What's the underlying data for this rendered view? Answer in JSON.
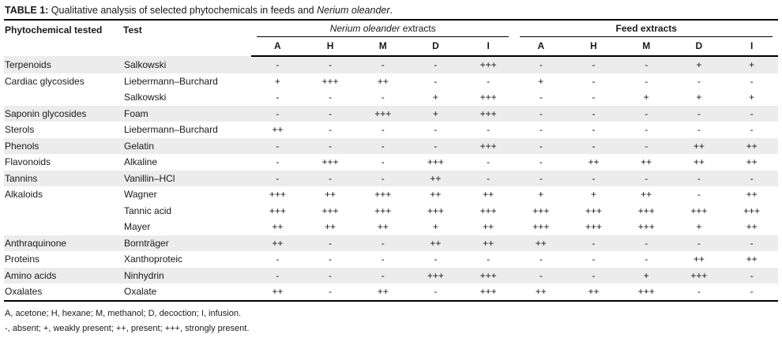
{
  "title": {
    "label": "TABLE 1:",
    "text": " Qualitative analysis of selected phytochemicals in feeds and ",
    "species": "Nerium oleander",
    "suffix": "."
  },
  "colors": {
    "row_shade": "#ececec",
    "rule": "#000000",
    "text": "#1a1a1a",
    "background": "#ffffff"
  },
  "table": {
    "col1_header": "Phytochemical tested",
    "col2_header": "Test",
    "groups": [
      {
        "name_italic": "Nerium oleander",
        "name_rest": " extracts",
        "subcols": [
          "A",
          "H",
          "M",
          "D",
          "I"
        ]
      },
      {
        "name": "Feed extracts",
        "subcols": [
          "A",
          "H",
          "M",
          "D",
          "I"
        ]
      }
    ],
    "rows": [
      {
        "phytochemical": "Terpenoids",
        "test": "Salkowski",
        "nerium": [
          "-",
          "-",
          "-",
          "-",
          "+++"
        ],
        "feed": [
          "-",
          "-",
          "-",
          "+",
          "+"
        ],
        "shaded": true
      },
      {
        "phytochemical": "Cardiac glycosides",
        "test": "Liebermann–Burchard",
        "nerium": [
          "+",
          "+++",
          "++",
          "-",
          "-"
        ],
        "feed": [
          "+",
          "-",
          "-",
          "-",
          "-"
        ],
        "shaded": false
      },
      {
        "phytochemical": "",
        "test": "Salkowski",
        "nerium": [
          "-",
          "-",
          "-",
          "+",
          "+++"
        ],
        "feed": [
          "-",
          "-",
          "+",
          "+",
          "+"
        ],
        "shaded": false
      },
      {
        "phytochemical": "Saponin glycosides",
        "test": "Foam",
        "nerium": [
          "-",
          "-",
          "+++",
          "+",
          "+++"
        ],
        "feed": [
          "-",
          "-",
          "-",
          "-",
          "-"
        ],
        "shaded": true
      },
      {
        "phytochemical": "Sterols",
        "test": "Liebermann–Burchard",
        "nerium": [
          "++",
          "-",
          "-",
          "-",
          "-"
        ],
        "feed": [
          "-",
          "-",
          "-",
          "-",
          "-"
        ],
        "shaded": false
      },
      {
        "phytochemical": "Phenols",
        "test": "Gelatin",
        "nerium": [
          "-",
          "-",
          "-",
          "-",
          "+++"
        ],
        "feed": [
          "-",
          "-",
          "-",
          "++",
          "++"
        ],
        "shaded": true
      },
      {
        "phytochemical": "Flavonoids",
        "test": "Alkaline",
        "nerium": [
          "-",
          "+++",
          "-",
          "+++",
          "-"
        ],
        "feed": [
          "-",
          "++",
          "++",
          "++",
          "++"
        ],
        "shaded": false
      },
      {
        "phytochemical": "Tannins",
        "test": "Vanillin–HCl",
        "nerium": [
          "-",
          "-",
          "-",
          "++",
          "-"
        ],
        "feed": [
          "-",
          "-",
          "-",
          "-",
          "-"
        ],
        "shaded": true
      },
      {
        "phytochemical": "Alkaloids",
        "test": "Wagner",
        "nerium": [
          "+++",
          "++",
          "+++",
          "++",
          "++"
        ],
        "feed": [
          "+",
          "+",
          "++",
          "-",
          "++"
        ],
        "shaded": false
      },
      {
        "phytochemical": "",
        "test": "Tannic acid",
        "nerium": [
          "+++",
          "+++",
          "+++",
          "+++",
          "+++"
        ],
        "feed": [
          "+++",
          "+++",
          "+++",
          "+++",
          "+++"
        ],
        "shaded": false
      },
      {
        "phytochemical": "",
        "test": "Mayer",
        "nerium": [
          "++",
          "++",
          "++",
          "+",
          "++"
        ],
        "feed": [
          "+++",
          "+++",
          "+++",
          "+",
          "++"
        ],
        "shaded": false
      },
      {
        "phytochemical": "Anthraquinone",
        "test": "Bornträger",
        "nerium": [
          "++",
          "-",
          "-",
          "++",
          "++"
        ],
        "feed": [
          "++",
          "-",
          "-",
          "-",
          "-"
        ],
        "shaded": true
      },
      {
        "phytochemical": "Proteins",
        "test": "Xanthoproteic",
        "nerium": [
          "-",
          "-",
          "-",
          "-",
          "-"
        ],
        "feed": [
          "-",
          "-",
          "-",
          "++",
          "++"
        ],
        "shaded": false
      },
      {
        "phytochemical": "Amino acids",
        "test": "Ninhydrin",
        "nerium": [
          "-",
          "-",
          "-",
          "+++",
          "+++"
        ],
        "feed": [
          "-",
          "-",
          "+",
          "+++",
          "-"
        ],
        "shaded": true
      },
      {
        "phytochemical": "Oxalates",
        "test": "Oxalate",
        "nerium": [
          "++",
          "-",
          "++",
          "-",
          "+++"
        ],
        "feed": [
          "++",
          "++",
          "+++",
          "-",
          "-"
        ],
        "shaded": false
      }
    ]
  },
  "footnotes": [
    "A, acetone; H, hexane; M, methanol; D, decoction; I, infusion.",
    "-, absent; +, weakly present; ++, present; +++, strongly present."
  ]
}
